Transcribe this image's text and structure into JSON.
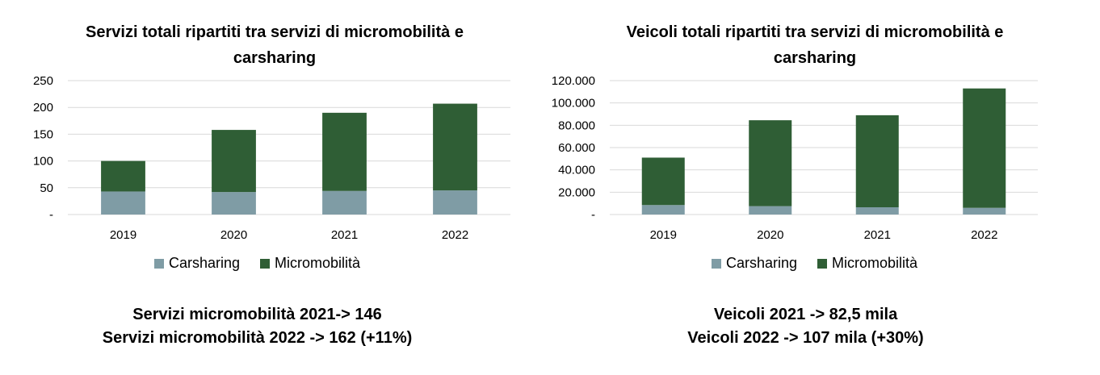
{
  "colors": {
    "carsharing": "#7f9ca5",
    "micromobilita": "#2f5e35",
    "grid": "#d9d9d9"
  },
  "charts": [
    {
      "title": "Servizi totali ripartiti tra servizi di micromobilità e carsharing",
      "legend": [
        "Carsharing",
        "Micromobilità"
      ],
      "notes": [
        "Servizi micromobilità 2021-> 146",
        "Servizi micromobilità 2022 -> 162 (+11%)"
      ]
    },
    {
      "title": "Veicoli totali ripartiti tra servizi di micromobilità e carsharing",
      "legend": [
        "Carsharing",
        "Micromobilità"
      ],
      "notes": [
        "Veicoli 2021 -> 82,5 mila",
        "Veicoli 2022 -> 107 mila (+30%)"
      ]
    }
  ],
  "chart_data": [
    {
      "type": "bar",
      "stacked": true,
      "title": "Servizi totali ripartiti tra servizi di micromobilità e carsharing",
      "categories": [
        "2019",
        "2020",
        "2021",
        "2022"
      ],
      "series": [
        {
          "name": "Carsharing",
          "values": [
            43,
            42,
            44,
            45
          ]
        },
        {
          "name": "Micromobilità",
          "values": [
            57,
            116,
            146,
            162
          ]
        }
      ],
      "ylim": [
        0,
        250
      ],
      "yticks": [
        0,
        50,
        100,
        150,
        200,
        250
      ],
      "ytick_labels": [
        "-",
        "50",
        "100",
        "150",
        "200",
        "250"
      ],
      "grid": true,
      "legend_position": "bottom"
    },
    {
      "type": "bar",
      "stacked": true,
      "title": "Veicoli totali ripartiti tra servizi di micromobilità e carsharing",
      "categories": [
        "2019",
        "2020",
        "2021",
        "2022"
      ],
      "series": [
        {
          "name": "Carsharing",
          "values": [
            8500,
            7500,
            6500,
            6000
          ]
        },
        {
          "name": "Micromobilità",
          "values": [
            42500,
            77000,
            82500,
            107000
          ]
        }
      ],
      "ylim": [
        0,
        120000
      ],
      "yticks": [
        0,
        20000,
        40000,
        60000,
        80000,
        100000,
        120000
      ],
      "ytick_labels": [
        "-",
        "20.000",
        "40.000",
        "60.000",
        "80.000",
        "100.000",
        "120.000"
      ],
      "grid": true,
      "legend_position": "bottom"
    }
  ]
}
